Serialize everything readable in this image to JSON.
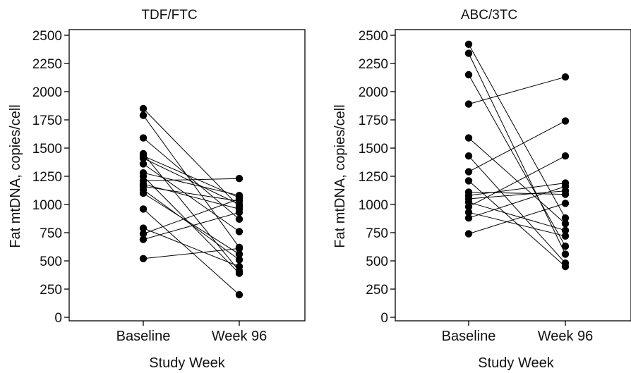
{
  "chart_data": [
    {
      "type": "line",
      "title": "TDF/FTC",
      "xlabel": "Study Week",
      "ylabel": "Fat mtDNA, copies/cell",
      "categories": [
        "Baseline",
        "Week 96"
      ],
      "ylim": [
        0,
        2500
      ],
      "yticks": [
        0,
        250,
        500,
        750,
        1000,
        1250,
        1500,
        1750,
        2000,
        2250,
        2500
      ],
      "grid": false,
      "series": [
        {
          "values": [
            1850,
            980
          ]
        },
        {
          "values": [
            1790,
            620
          ]
        },
        {
          "values": [
            1590,
            870
          ]
        },
        {
          "values": [
            1450,
            410
          ]
        },
        {
          "values": [
            1430,
            1060
          ]
        },
        {
          "values": [
            1410,
            1000
          ]
        },
        {
          "values": [
            1360,
            760
          ]
        },
        {
          "values": [
            1280,
            1080
          ]
        },
        {
          "values": [
            1250,
            390
          ]
        },
        {
          "values": [
            1210,
            1230
          ]
        },
        {
          "values": [
            1180,
            960
          ]
        },
        {
          "values": [
            1160,
            1030
          ]
        },
        {
          "values": [
            1130,
            510
          ]
        },
        {
          "values": [
            1100,
            560
          ]
        },
        {
          "values": [
            960,
            200
          ]
        },
        {
          "values": [
            790,
            450
          ]
        },
        {
          "values": [
            740,
            1050
          ]
        },
        {
          "values": [
            690,
            930
          ]
        },
        {
          "values": [
            520,
            610
          ]
        }
      ]
    },
    {
      "type": "line",
      "title": "ABC/3TC",
      "xlabel": "Study Week",
      "ylabel": "Fat mtDNA, copies/cell",
      "categories": [
        "Baseline",
        "Week 96"
      ],
      "ylim": [
        0,
        2500
      ],
      "yticks": [
        0,
        250,
        500,
        750,
        1000,
        1250,
        1500,
        1750,
        2000,
        2250,
        2500
      ],
      "grid": false,
      "series": [
        {
          "values": [
            2420,
            880
          ]
        },
        {
          "values": [
            2340,
            560
          ]
        },
        {
          "values": [
            2150,
            630
          ]
        },
        {
          "values": [
            1890,
            2130
          ]
        },
        {
          "values": [
            1590,
            830
          ]
        },
        {
          "values": [
            1430,
            480
          ]
        },
        {
          "values": [
            1290,
            1740
          ]
        },
        {
          "values": [
            1210,
            450
          ]
        },
        {
          "values": [
            1110,
            1090
          ]
        },
        {
          "values": [
            1080,
            1190
          ]
        },
        {
          "values": [
            1050,
            1120
          ]
        },
        {
          "values": [
            1020,
            770
          ]
        },
        {
          "values": [
            980,
            1430
          ]
        },
        {
          "values": [
            930,
            720
          ]
        },
        {
          "values": [
            880,
            1160
          ]
        },
        {
          "values": [
            740,
            1010
          ]
        }
      ]
    }
  ]
}
